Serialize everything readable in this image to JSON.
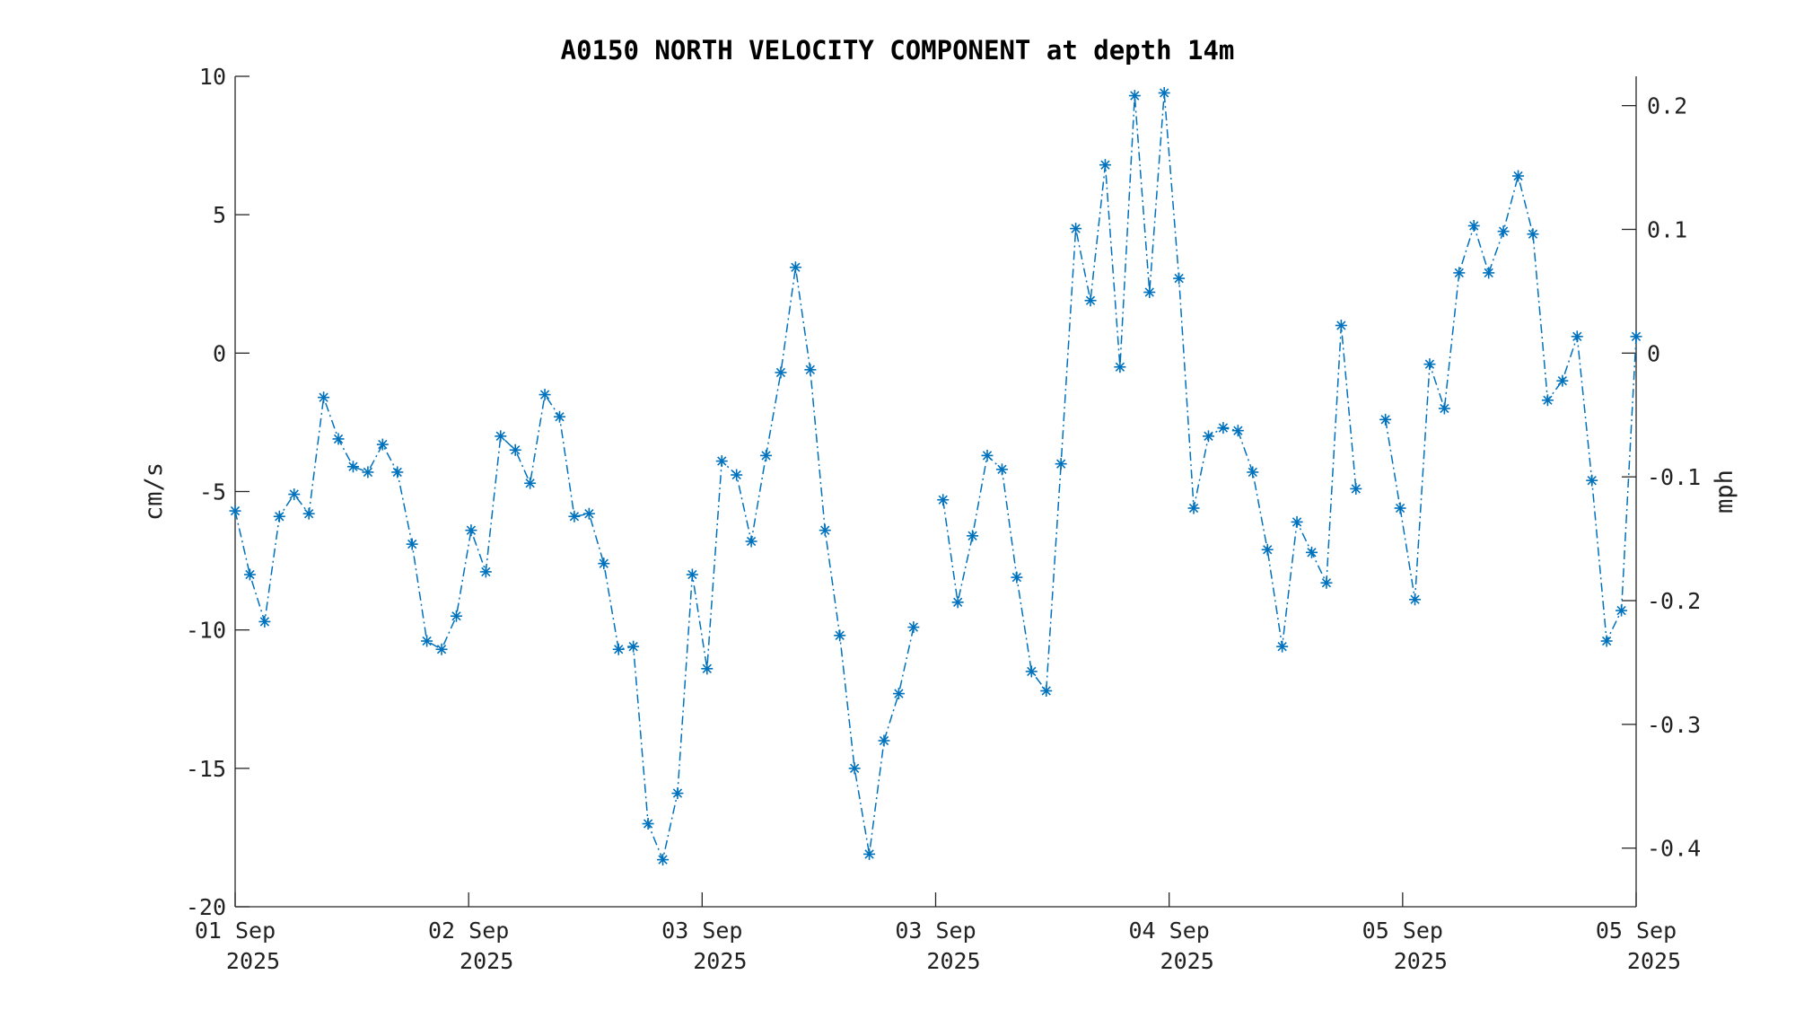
{
  "chart_data": {
    "type": "line",
    "title": "A0150 NORTH VELOCITY COMPONENT at depth 14m",
    "ylabel_left": "cm/s",
    "ylabel_right": "mph",
    "ylim": [
      -20,
      10
    ],
    "yticks_left": [
      10,
      5,
      0,
      -5,
      -10,
      -15,
      -20
    ],
    "yticks_left_labels": [
      "10",
      "5",
      "0",
      "-5",
      "-10",
      "-15",
      "-20"
    ],
    "yticks_right": [
      0.2,
      0.1,
      0,
      -0.1,
      -0.2,
      -0.3,
      -0.4
    ],
    "yticks_right_labels": [
      "0.2",
      "0.1",
      "0",
      "-0.1",
      "-0.2",
      "-0.3",
      "-0.4"
    ],
    "xticks": [
      {
        "day": "01 Sep",
        "year": "2025"
      },
      {
        "day": "02 Sep",
        "year": "2025"
      },
      {
        "day": "03 Sep",
        "year": "2025"
      },
      {
        "day": "03 Sep",
        "year": "2025"
      },
      {
        "day": "04 Sep",
        "year": "2025"
      },
      {
        "day": "05 Sep",
        "year": "2025"
      },
      {
        "day": "05 Sep",
        "year": "2025"
      }
    ],
    "grid": false,
    "legend": "none",
    "line_style": "dash-dot",
    "marker": "asterisk",
    "color": "#0072BD",
    "series": [
      {
        "values": [
          -5.7,
          -8.0,
          -9.7,
          -5.9,
          -5.1,
          -5.8,
          -1.6,
          -3.1,
          -4.1,
          -4.3,
          -3.3,
          -4.3,
          -6.9,
          -10.4,
          -10.7,
          -9.5,
          -6.4,
          -7.9,
          -3.0,
          -3.5,
          -4.7,
          -1.5,
          -2.3,
          -5.9,
          -5.8,
          -7.6,
          -10.7,
          -10.6,
          -17.0,
          -18.3,
          -15.9,
          -8.0,
          -11.4,
          -3.9,
          -4.4,
          -6.8,
          -3.7,
          -0.7,
          3.1,
          -0.6,
          -6.4,
          -10.2,
          -15.0,
          -18.1,
          -14.0,
          -12.3,
          -9.9,
          null,
          -5.3,
          -9.0,
          -6.6,
          -3.7,
          -4.2,
          -8.1,
          -11.5,
          -12.2,
          -4.0,
          4.5,
          1.9,
          6.8,
          -0.5,
          9.3,
          2.2,
          9.4,
          2.7,
          -5.6,
          -3.0,
          -2.7,
          -2.8,
          -4.3,
          -7.1,
          -10.6,
          -6.1,
          -7.2,
          -8.3,
          1.0,
          -4.9,
          null,
          -2.4,
          -5.6,
          -8.9,
          -0.4,
          -2.0,
          2.9,
          4.6,
          2.9,
          4.4,
          6.4,
          4.3,
          -1.7,
          -1.0,
          0.6,
          -4.6,
          -10.4,
          -9.3,
          0.6
        ]
      }
    ]
  }
}
